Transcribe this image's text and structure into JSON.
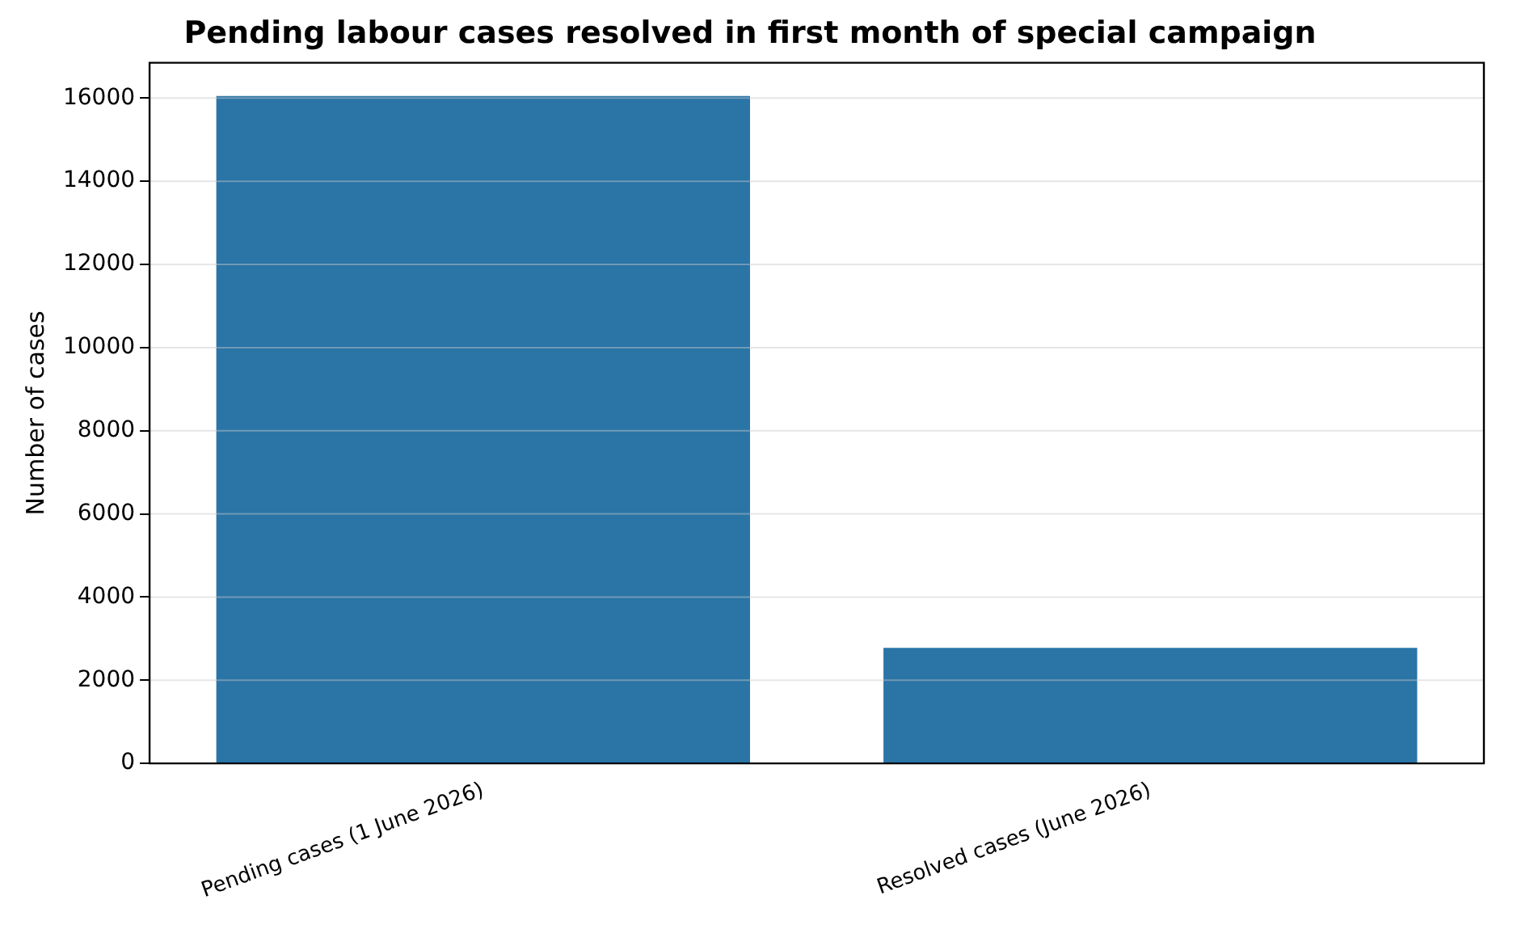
{
  "chart_data": {
    "type": "bar",
    "title": "Pending labour cases resolved in first month of special campaign",
    "ylabel": "Number of cases",
    "categories": [
      "Pending cases (1 June 2026)",
      "Resolved cases (June 2026)"
    ],
    "values": [
      16050,
      2780
    ],
    "color": "#2a74a6",
    "ylim": [
      0,
      16850
    ],
    "yticks": [
      0,
      2000,
      4000,
      6000,
      8000,
      10000,
      12000,
      14000,
      16000
    ],
    "grid": "y"
  }
}
